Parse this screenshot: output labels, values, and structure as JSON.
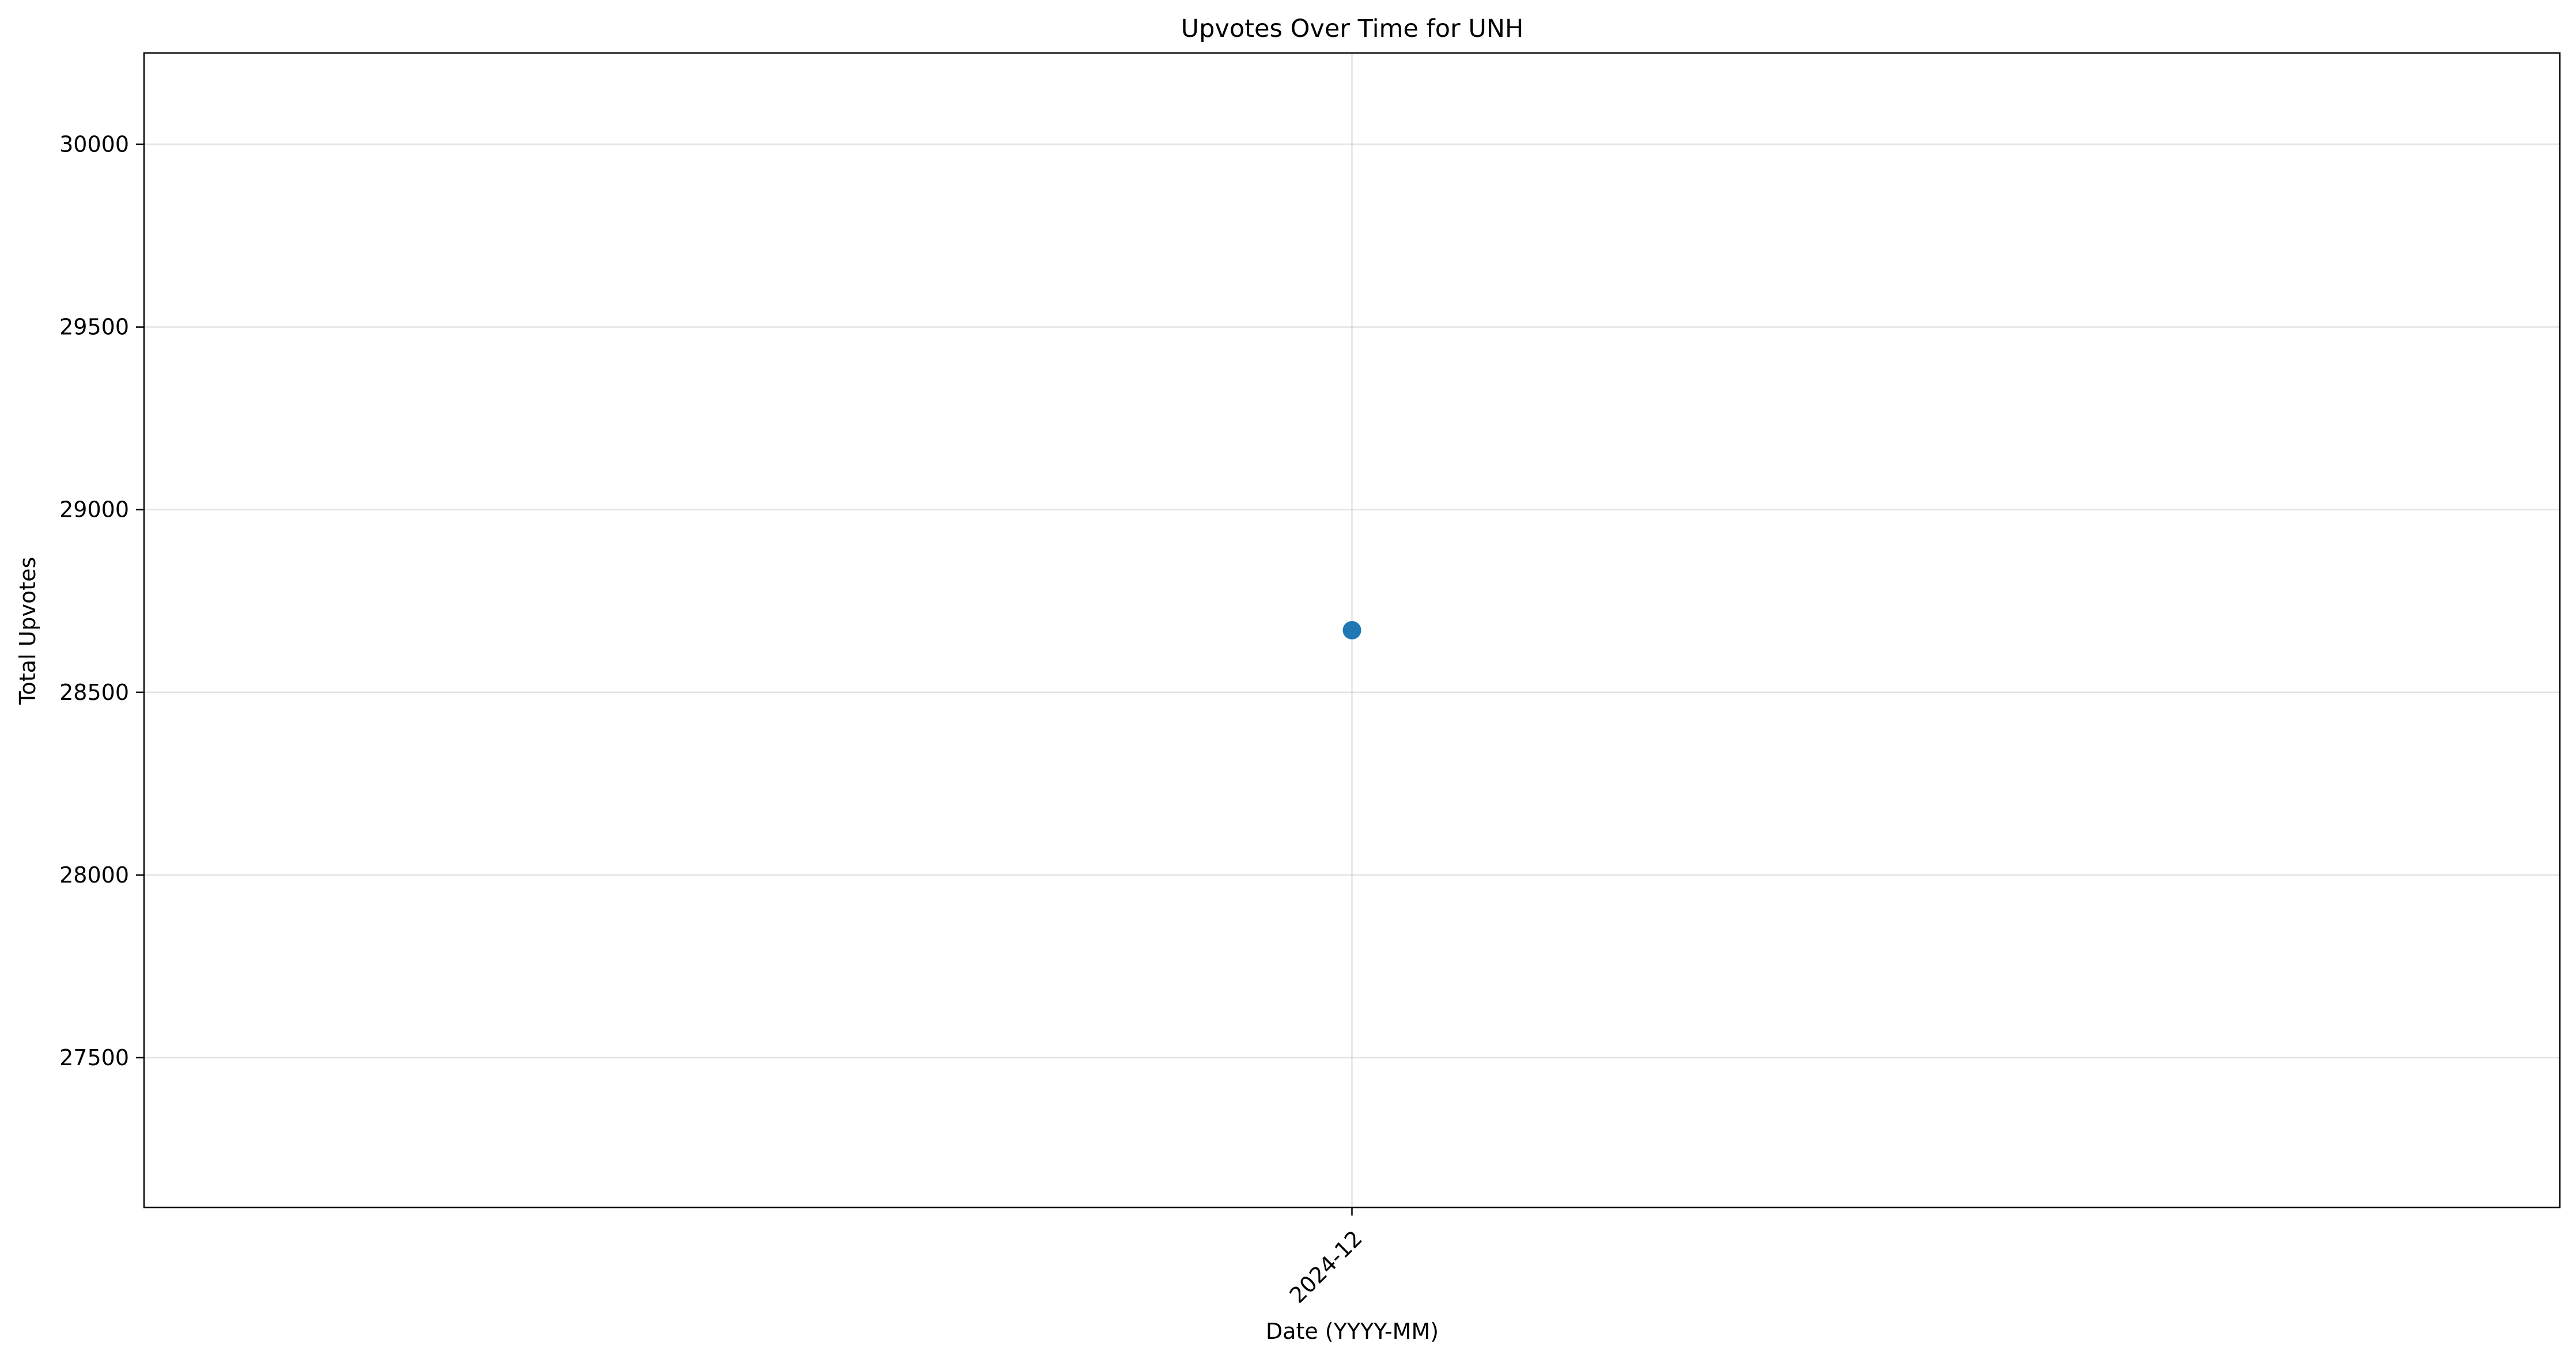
{
  "chart_data": {
    "type": "scatter",
    "title": "Upvotes Over Time for UNH",
    "xlabel": "Date (YYYY-MM)",
    "ylabel": "Total Upvotes",
    "x_categories": [
      "2024-12"
    ],
    "x_tick_rotation_deg": 45,
    "ylim": [
      27090,
      30250
    ],
    "y_ticks": [
      27500,
      28000,
      28500,
      29000,
      29500,
      30000
    ],
    "grid": true,
    "legend": "none",
    "series": [
      {
        "color": "#1f77b4",
        "points": [
          {
            "x": "2024-12",
            "y": 28670
          }
        ]
      }
    ]
  }
}
